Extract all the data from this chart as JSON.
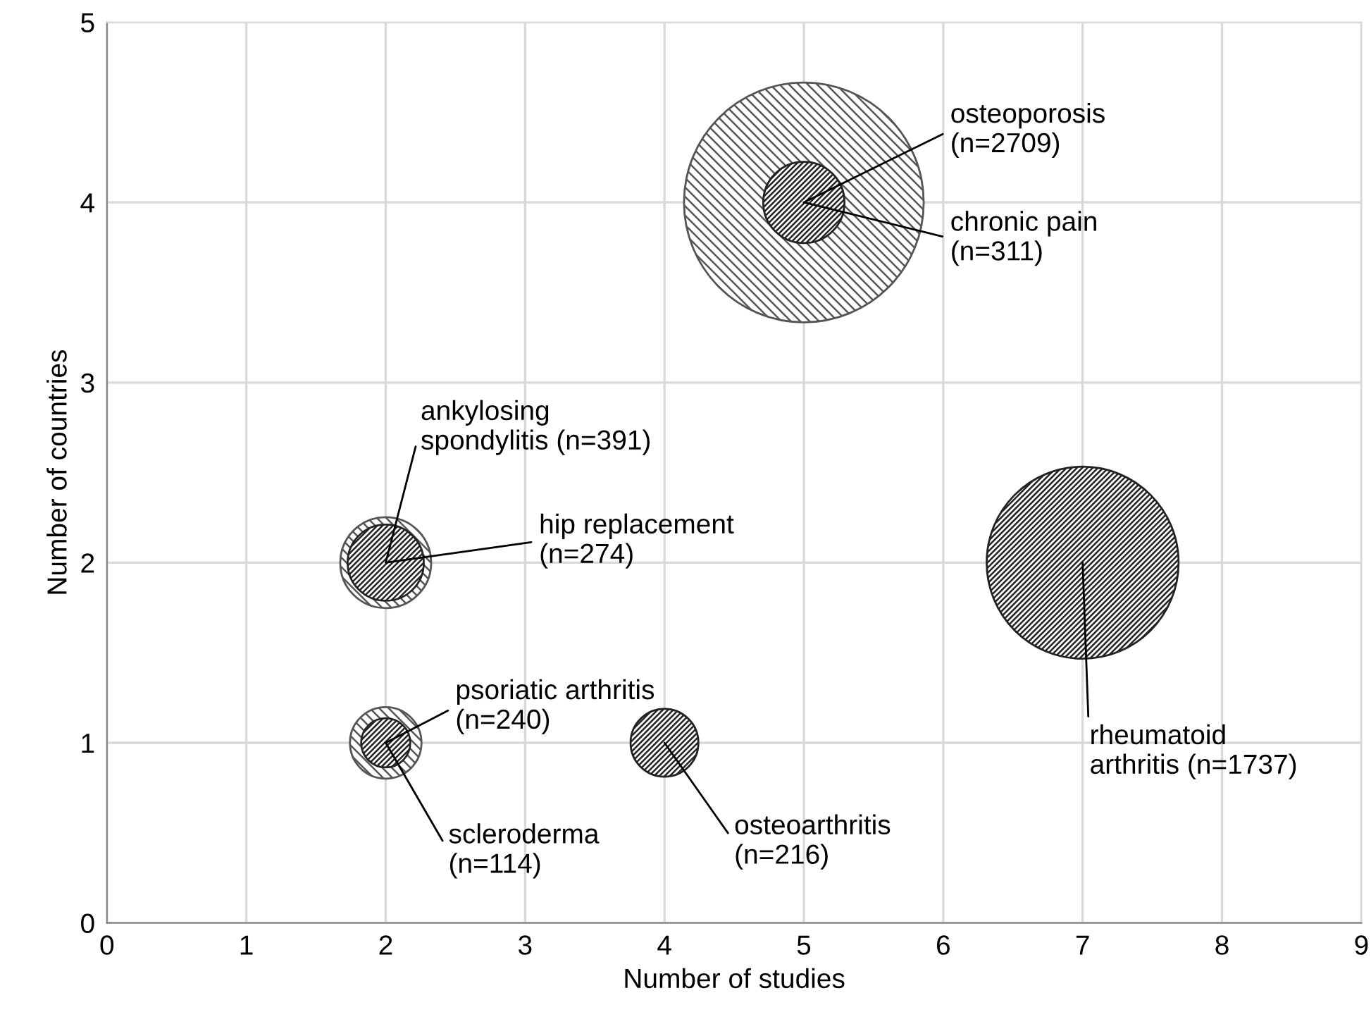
{
  "chart_data": {
    "type": "bubble",
    "xlabel": "Number of studies",
    "ylabel": "Number of countries",
    "xlim": [
      0,
      9
    ],
    "xticks": [
      0,
      1,
      2,
      3,
      4,
      5,
      6,
      7,
      8,
      9
    ],
    "ylim": [
      0,
      5
    ],
    "yticks": [
      0,
      1,
      2,
      3,
      4,
      5
    ],
    "grid": true,
    "series": [
      {
        "color": "#555555",
        "x": [
          5,
          2,
          2
        ],
        "values": [
          4,
          2,
          1
        ],
        "sizes": [
          1,
          0.144,
          0.089
        ]
      },
      {
        "color": "#222222",
        "x": [
          5,
          7,
          2,
          2,
          4
        ],
        "values": [
          4,
          2,
          2,
          1,
          1
        ],
        "sizes": [
          0.115,
          0.641,
          0.101,
          0.042,
          0.08
        ]
      }
    ],
    "annotations": [
      {
        "text": "osteoporosis\n(n=2709)",
        "x": 5,
        "y": 4
      },
      {
        "text": "chronic pain\n(n=311)",
        "x": 5,
        "y": 4
      },
      {
        "text": "ankylosing\nspondylitis (n=391)",
        "x": 2,
        "y": 2
      },
      {
        "text": "hip replacement\n(n=274)",
        "x": 2,
        "y": 2
      },
      {
        "text": "psoriatic arthritis\n(n=240)",
        "x": 2,
        "y": 1
      },
      {
        "text": "scleroderma\n(n=114)",
        "x": 2,
        "y": 1
      },
      {
        "text": "osteoarthritis\n(n=216)",
        "x": 4,
        "y": 1
      },
      {
        "text": "rheumatoid\narthritis (n=1737)",
        "x": 7,
        "y": 2
      }
    ]
  }
}
